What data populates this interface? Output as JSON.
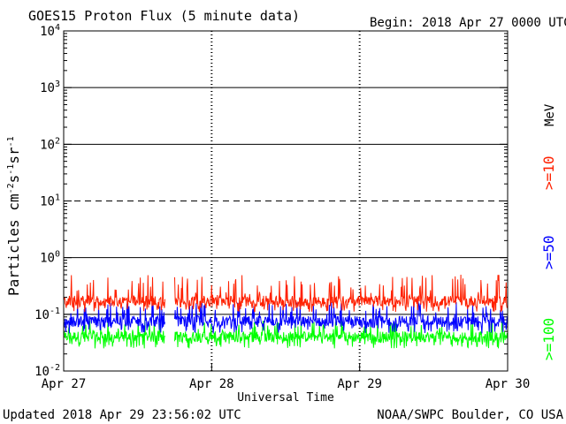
{
  "chart_data": {
    "type": "line",
    "title": "GOES15 Proton Flux (5 minute data)",
    "begin_label": "Begin: 2018 Apr 27 0000 UTC",
    "xlabel": "Universal Time",
    "ylabel_main": "Particles cm",
    "ylabel_exp1": "-2",
    "ylabel_mid1": "s",
    "ylabel_exp2": "-1",
    "ylabel_mid2": "sr",
    "ylabel_exp3": "-1",
    "y_scale": "log",
    "ylim": [
      0.01,
      10000
    ],
    "y_ticks": [
      {
        "base": "10",
        "exp": "4"
      },
      {
        "base": "10",
        "exp": "3"
      },
      {
        "base": "10",
        "exp": "2"
      },
      {
        "base": "10",
        "exp": "1"
      },
      {
        "base": "10",
        "exp": "0"
      },
      {
        "base": "10",
        "exp": "-1"
      },
      {
        "base": "10",
        "exp": "-2"
      }
    ],
    "x_ticks": [
      "Apr 27",
      "Apr 28",
      "Apr 29",
      "Apr 30"
    ],
    "xlim": [
      "2018-04-27 00:00",
      "2018-04-30 00:00"
    ],
    "data_gap": [
      "2018-04-27 16:30",
      "2018-04-27 18:00"
    ],
    "threshold_lines": [
      {
        "value": 1000,
        "style": "solid"
      },
      {
        "value": 100,
        "style": "solid"
      },
      {
        "value": 10,
        "style": "dashed"
      },
      {
        "value": 1,
        "style": "solid"
      },
      {
        "value": 0.1,
        "style": "solid"
      }
    ],
    "unit_label": "MeV",
    "series": [
      {
        "name": ">=10",
        "color": "#ff2000",
        "typical": 0.17,
        "low": 0.11,
        "high": 0.5
      },
      {
        "name": ">=50",
        "color": "#0000ff",
        "typical": 0.075,
        "low": 0.045,
        "high": 0.17
      },
      {
        "name": ">=100",
        "color": "#00ff00",
        "typical": 0.04,
        "low": 0.025,
        "high": 0.08
      }
    ]
  },
  "footer": {
    "updated": "Updated 2018 Apr 29 23:56:02 UTC",
    "credit": "NOAA/SWPC Boulder, CO USA"
  }
}
